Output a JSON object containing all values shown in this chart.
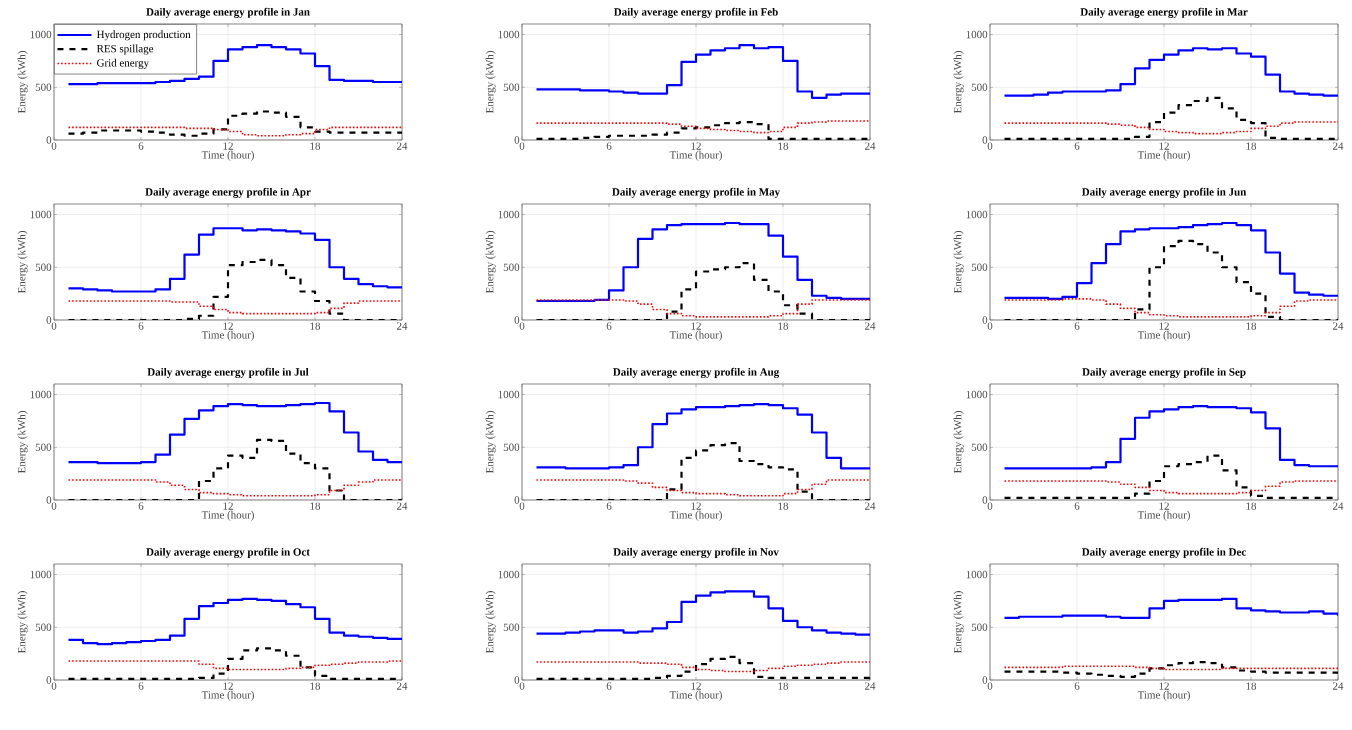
{
  "chart_data": [
    {
      "type": "step",
      "title": "Daily average energy profile in Jan",
      "xlabel": "Time (hour)",
      "ylabel": "Energy (kWh)",
      "x": [
        1,
        2,
        3,
        4,
        5,
        6,
        7,
        8,
        9,
        10,
        11,
        12,
        13,
        14,
        15,
        16,
        17,
        18,
        19,
        20,
        21,
        22,
        23,
        24
      ],
      "xlim": [
        0,
        24
      ],
      "ylim": [
        0,
        1100
      ],
      "xticks": [
        0,
        6,
        12,
        18,
        24
      ],
      "yticks": [
        0,
        500,
        1000
      ],
      "grid": true,
      "legend": "top left",
      "series": [
        {
          "name": "Hydrogen production",
          "color": "#0000ff",
          "line_style": "solid",
          "values": [
            530,
            530,
            540,
            540,
            540,
            540,
            550,
            560,
            580,
            600,
            750,
            860,
            880,
            900,
            880,
            860,
            820,
            700,
            570,
            560,
            560,
            550,
            550,
            550
          ]
        },
        {
          "name": "RES spillage",
          "color": "#000000",
          "line_style": "dashed",
          "values": [
            60,
            70,
            90,
            90,
            90,
            80,
            70,
            50,
            40,
            60,
            100,
            230,
            250,
            270,
            260,
            220,
            120,
            80,
            70,
            70,
            70,
            70,
            70,
            70
          ]
        },
        {
          "name": "Grid energy",
          "color": "#ff0000",
          "line_style": "dotted",
          "values": [
            120,
            120,
            120,
            120,
            120,
            120,
            120,
            120,
            110,
            110,
            100,
            80,
            50,
            40,
            40,
            50,
            60,
            100,
            120,
            120,
            120,
            120,
            120,
            120
          ]
        }
      ]
    },
    {
      "type": "step",
      "title": "Daily average energy profile in Feb",
      "xlabel": "Time (hour)",
      "ylabel": "Energy (kWh)",
      "x": [
        1,
        2,
        3,
        4,
        5,
        6,
        7,
        8,
        9,
        10,
        11,
        12,
        13,
        14,
        15,
        16,
        17,
        18,
        19,
        20,
        21,
        22,
        23,
        24
      ],
      "xlim": [
        0,
        24
      ],
      "ylim": [
        0,
        1100
      ],
      "xticks": [
        0,
        6,
        12,
        18,
        24
      ],
      "yticks": [
        0,
        500,
        1000
      ],
      "grid": true,
      "series": [
        {
          "color": "#0000ff",
          "line_style": "solid",
          "values": [
            480,
            480,
            480,
            470,
            470,
            460,
            450,
            440,
            440,
            520,
            740,
            810,
            850,
            870,
            900,
            870,
            880,
            750,
            460,
            400,
            430,
            440,
            440,
            440
          ]
        },
        {
          "color": "#000000",
          "line_style": "dashed",
          "values": [
            10,
            10,
            10,
            20,
            30,
            40,
            40,
            40,
            50,
            70,
            110,
            120,
            140,
            160,
            170,
            150,
            10,
            10,
            10,
            10,
            10,
            10,
            10,
            10
          ]
        },
        {
          "color": "#ff0000",
          "line_style": "dotted",
          "values": [
            160,
            160,
            160,
            160,
            160,
            160,
            160,
            160,
            160,
            150,
            130,
            110,
            100,
            90,
            80,
            70,
            80,
            120,
            160,
            170,
            180,
            180,
            180,
            180
          ]
        }
      ]
    },
    {
      "type": "step",
      "title": "Daily average energy profile in Mar",
      "xlabel": "Time (hour)",
      "ylabel": "Energy (kWh)",
      "x": [
        1,
        2,
        3,
        4,
        5,
        6,
        7,
        8,
        9,
        10,
        11,
        12,
        13,
        14,
        15,
        16,
        17,
        18,
        19,
        20,
        21,
        22,
        23,
        24
      ],
      "xlim": [
        0,
        24
      ],
      "ylim": [
        0,
        1100
      ],
      "xticks": [
        0,
        6,
        12,
        18,
        24
      ],
      "yticks": [
        0,
        500,
        1000
      ],
      "grid": true,
      "series": [
        {
          "color": "#0000ff",
          "line_style": "solid",
          "values": [
            420,
            420,
            430,
            450,
            460,
            460,
            460,
            470,
            530,
            680,
            760,
            810,
            850,
            870,
            860,
            870,
            820,
            790,
            620,
            460,
            440,
            430,
            420,
            410
          ]
        },
        {
          "color": "#000000",
          "line_style": "dashed",
          "values": [
            10,
            10,
            10,
            10,
            10,
            10,
            10,
            10,
            10,
            30,
            170,
            260,
            330,
            370,
            400,
            300,
            190,
            160,
            20,
            10,
            10,
            10,
            10,
            10
          ]
        },
        {
          "color": "#ff0000",
          "line_style": "dotted",
          "values": [
            160,
            160,
            160,
            160,
            160,
            160,
            160,
            150,
            140,
            120,
            100,
            80,
            70,
            60,
            60,
            70,
            80,
            110,
            130,
            160,
            170,
            170,
            170,
            170
          ]
        }
      ]
    },
    {
      "type": "step",
      "title": "Daily average energy profile in Apr",
      "xlabel": "Time (hour)",
      "ylabel": "Energy (kWh)",
      "x": [
        1,
        2,
        3,
        4,
        5,
        6,
        7,
        8,
        9,
        10,
        11,
        12,
        13,
        14,
        15,
        16,
        17,
        18,
        19,
        20,
        21,
        22,
        23,
        24
      ],
      "xlim": [
        0,
        24
      ],
      "ylim": [
        0,
        1100
      ],
      "xticks": [
        0,
        6,
        12,
        18,
        24
      ],
      "yticks": [
        0,
        500,
        1000
      ],
      "grid": true,
      "series": [
        {
          "color": "#0000ff",
          "line_style": "solid",
          "values": [
            300,
            290,
            280,
            270,
            270,
            270,
            290,
            390,
            620,
            810,
            870,
            870,
            850,
            860,
            850,
            840,
            820,
            760,
            500,
            390,
            340,
            320,
            310,
            300
          ]
        },
        {
          "color": "#000000",
          "line_style": "dashed",
          "values": [
            0,
            0,
            0,
            0,
            0,
            0,
            0,
            0,
            10,
            40,
            220,
            520,
            550,
            570,
            520,
            400,
            270,
            180,
            60,
            0,
            0,
            0,
            0,
            0
          ]
        },
        {
          "color": "#ff0000",
          "line_style": "dotted",
          "values": [
            180,
            180,
            180,
            180,
            180,
            180,
            180,
            170,
            170,
            130,
            100,
            70,
            60,
            60,
            60,
            60,
            60,
            70,
            110,
            160,
            180,
            180,
            180,
            180
          ]
        }
      ]
    },
    {
      "type": "step",
      "title": "Daily average energy profile in May",
      "xlabel": "Time (hour)",
      "ylabel": "Energy (kWh)",
      "x": [
        1,
        2,
        3,
        4,
        5,
        6,
        7,
        8,
        9,
        10,
        11,
        12,
        13,
        14,
        15,
        16,
        17,
        18,
        19,
        20,
        21,
        22,
        23,
        24
      ],
      "xlim": [
        0,
        24
      ],
      "ylim": [
        0,
        1100
      ],
      "xticks": [
        0,
        6,
        12,
        18,
        24
      ],
      "yticks": [
        0,
        500,
        1000
      ],
      "grid": true,
      "series": [
        {
          "color": "#0000ff",
          "line_style": "solid",
          "values": [
            180,
            180,
            180,
            180,
            190,
            280,
            500,
            770,
            860,
            900,
            910,
            910,
            910,
            920,
            910,
            910,
            800,
            600,
            380,
            230,
            210,
            200,
            200,
            200
          ]
        },
        {
          "color": "#000000",
          "line_style": "dashed",
          "values": [
            0,
            0,
            0,
            0,
            0,
            0,
            0,
            0,
            0,
            80,
            290,
            460,
            480,
            500,
            540,
            380,
            270,
            140,
            60,
            0,
            0,
            0,
            0,
            0
          ]
        },
        {
          "color": "#ff0000",
          "line_style": "dotted",
          "values": [
            190,
            190,
            190,
            190,
            190,
            190,
            180,
            150,
            100,
            60,
            40,
            30,
            30,
            30,
            30,
            30,
            40,
            60,
            150,
            190,
            190,
            190,
            190,
            190
          ]
        }
      ]
    },
    {
      "type": "step",
      "title": "Daily average energy profile in Jun",
      "xlabel": "Time (hour)",
      "ylabel": "Energy (kWh)",
      "x": [
        1,
        2,
        3,
        4,
        5,
        6,
        7,
        8,
        9,
        10,
        11,
        12,
        13,
        14,
        15,
        16,
        17,
        18,
        19,
        20,
        21,
        22,
        23,
        24
      ],
      "xlim": [
        0,
        24
      ],
      "ylim": [
        0,
        1100
      ],
      "xticks": [
        0,
        6,
        12,
        18,
        24
      ],
      "yticks": [
        0,
        500,
        1000
      ],
      "grid": true,
      "series": [
        {
          "color": "#0000ff",
          "line_style": "solid",
          "values": [
            210,
            210,
            210,
            200,
            220,
            350,
            540,
            720,
            840,
            860,
            870,
            870,
            880,
            900,
            910,
            920,
            900,
            850,
            640,
            440,
            260,
            240,
            230,
            220
          ]
        },
        {
          "color": "#000000",
          "line_style": "dashed",
          "values": [
            0,
            0,
            0,
            0,
            0,
            0,
            0,
            0,
            0,
            100,
            500,
            700,
            750,
            720,
            640,
            500,
            360,
            250,
            30,
            0,
            0,
            0,
            0,
            0
          ]
        },
        {
          "color": "#ff0000",
          "line_style": "dotted",
          "values": [
            190,
            190,
            190,
            190,
            200,
            200,
            190,
            150,
            110,
            70,
            50,
            40,
            30,
            30,
            30,
            30,
            30,
            40,
            70,
            130,
            180,
            190,
            190,
            190
          ]
        }
      ]
    },
    {
      "type": "step",
      "title": "Daily average energy profile in Jul",
      "xlabel": "Time (hour)",
      "ylabel": "Energy (kWh)",
      "x": [
        1,
        2,
        3,
        4,
        5,
        6,
        7,
        8,
        9,
        10,
        11,
        12,
        13,
        14,
        15,
        16,
        17,
        18,
        19,
        20,
        21,
        22,
        23,
        24
      ],
      "xlim": [
        0,
        24
      ],
      "ylim": [
        0,
        1100
      ],
      "xticks": [
        0,
        6,
        12,
        18,
        24
      ],
      "yticks": [
        0,
        500,
        1000
      ],
      "grid": true,
      "series": [
        {
          "color": "#0000ff",
          "line_style": "solid",
          "values": [
            360,
            360,
            350,
            350,
            350,
            360,
            430,
            620,
            770,
            850,
            890,
            910,
            900,
            890,
            890,
            900,
            910,
            920,
            840,
            640,
            460,
            380,
            360,
            360
          ]
        },
        {
          "color": "#000000",
          "line_style": "dashed",
          "values": [
            0,
            0,
            0,
            0,
            0,
            0,
            0,
            0,
            0,
            180,
            300,
            420,
            400,
            570,
            560,
            440,
            350,
            300,
            90,
            0,
            0,
            0,
            0,
            0
          ]
        },
        {
          "color": "#ff0000",
          "line_style": "dotted",
          "values": [
            190,
            190,
            190,
            190,
            190,
            190,
            170,
            140,
            100,
            70,
            60,
            50,
            40,
            40,
            40,
            40,
            40,
            50,
            90,
            140,
            170,
            190,
            190,
            190
          ]
        }
      ]
    },
    {
      "type": "step",
      "title": "Daily average energy profile in Aug",
      "xlabel": "Time (hour)",
      "ylabel": "Energy (kWh)",
      "x": [
        1,
        2,
        3,
        4,
        5,
        6,
        7,
        8,
        9,
        10,
        11,
        12,
        13,
        14,
        15,
        16,
        17,
        18,
        19,
        20,
        21,
        22,
        23,
        24
      ],
      "xlim": [
        0,
        24
      ],
      "ylim": [
        0,
        1100
      ],
      "xticks": [
        0,
        6,
        12,
        18,
        24
      ],
      "yticks": [
        0,
        500,
        1000
      ],
      "grid": true,
      "series": [
        {
          "color": "#0000ff",
          "line_style": "solid",
          "values": [
            310,
            310,
            300,
            300,
            300,
            310,
            330,
            500,
            720,
            820,
            860,
            880,
            880,
            890,
            900,
            910,
            900,
            870,
            810,
            640,
            400,
            300,
            300,
            300
          ]
        },
        {
          "color": "#000000",
          "line_style": "dashed",
          "values": [
            0,
            0,
            0,
            0,
            0,
            0,
            0,
            0,
            0,
            100,
            400,
            470,
            520,
            540,
            370,
            340,
            310,
            290,
            80,
            0,
            0,
            0,
            0,
            0
          ]
        },
        {
          "color": "#ff0000",
          "line_style": "dotted",
          "values": [
            190,
            190,
            190,
            190,
            190,
            190,
            180,
            160,
            120,
            90,
            70,
            60,
            60,
            50,
            40,
            40,
            40,
            60,
            100,
            150,
            190,
            190,
            190,
            190
          ]
        }
      ]
    },
    {
      "type": "step",
      "title": "Daily average energy profile in Sep",
      "xlabel": "Time (hour)",
      "ylabel": "Energy (kWh)",
      "x": [
        1,
        2,
        3,
        4,
        5,
        6,
        7,
        8,
        9,
        10,
        11,
        12,
        13,
        14,
        15,
        16,
        17,
        18,
        19,
        20,
        21,
        22,
        23,
        24
      ],
      "xlim": [
        0,
        24
      ],
      "ylim": [
        0,
        1100
      ],
      "xticks": [
        0,
        6,
        12,
        18,
        24
      ],
      "yticks": [
        0,
        500,
        1000
      ],
      "grid": true,
      "series": [
        {
          "color": "#0000ff",
          "line_style": "solid",
          "values": [
            300,
            300,
            300,
            300,
            300,
            300,
            310,
            360,
            580,
            780,
            840,
            860,
            880,
            890,
            880,
            880,
            870,
            830,
            680,
            380,
            330,
            320,
            320,
            320
          ]
        },
        {
          "color": "#000000",
          "line_style": "dashed",
          "values": [
            20,
            20,
            20,
            20,
            20,
            20,
            20,
            20,
            20,
            60,
            180,
            320,
            340,
            360,
            420,
            280,
            120,
            40,
            20,
            20,
            20,
            20,
            20,
            20
          ]
        },
        {
          "color": "#ff0000",
          "line_style": "dotted",
          "values": [
            180,
            180,
            180,
            180,
            180,
            180,
            180,
            170,
            150,
            120,
            90,
            70,
            60,
            60,
            60,
            60,
            70,
            90,
            130,
            170,
            180,
            180,
            180,
            180
          ]
        }
      ]
    },
    {
      "type": "step",
      "title": "Daily average energy profile in Oct",
      "xlabel": "Time (hour)",
      "ylabel": "Energy (kWh)",
      "x": [
        1,
        2,
        3,
        4,
        5,
        6,
        7,
        8,
        9,
        10,
        11,
        12,
        13,
        14,
        15,
        16,
        17,
        18,
        19,
        20,
        21,
        22,
        23,
        24
      ],
      "xlim": [
        0,
        24
      ],
      "ylim": [
        0,
        1100
      ],
      "xticks": [
        0,
        6,
        12,
        18,
        24
      ],
      "yticks": [
        0,
        500,
        1000
      ],
      "grid": true,
      "series": [
        {
          "color": "#0000ff",
          "line_style": "solid",
          "values": [
            380,
            350,
            340,
            350,
            360,
            370,
            380,
            420,
            580,
            700,
            730,
            760,
            770,
            760,
            750,
            720,
            690,
            580,
            450,
            420,
            410,
            400,
            390,
            380
          ]
        },
        {
          "color": "#000000",
          "line_style": "dashed",
          "values": [
            10,
            10,
            10,
            10,
            10,
            10,
            10,
            10,
            10,
            20,
            60,
            200,
            280,
            300,
            280,
            230,
            120,
            40,
            10,
            10,
            10,
            10,
            10,
            10
          ]
        },
        {
          "color": "#ff0000",
          "line_style": "dotted",
          "values": [
            180,
            180,
            180,
            180,
            180,
            180,
            180,
            180,
            180,
            150,
            110,
            100,
            100,
            100,
            100,
            110,
            120,
            140,
            150,
            160,
            170,
            170,
            180,
            180
          ]
        }
      ]
    },
    {
      "type": "step",
      "title": "Daily average energy profile in Nov",
      "xlabel": "Time (hour)",
      "ylabel": "Energy (kWh)",
      "x": [
        1,
        2,
        3,
        4,
        5,
        6,
        7,
        8,
        9,
        10,
        11,
        12,
        13,
        14,
        15,
        16,
        17,
        18,
        19,
        20,
        21,
        22,
        23,
        24
      ],
      "xlim": [
        0,
        24
      ],
      "ylim": [
        0,
        1100
      ],
      "xticks": [
        0,
        6,
        12,
        18,
        24
      ],
      "yticks": [
        0,
        500,
        1000
      ],
      "grid": true,
      "series": [
        {
          "color": "#0000ff",
          "line_style": "solid",
          "values": [
            440,
            440,
            450,
            460,
            470,
            470,
            450,
            460,
            490,
            550,
            740,
            800,
            830,
            840,
            840,
            790,
            680,
            560,
            500,
            470,
            450,
            440,
            430,
            430
          ]
        },
        {
          "color": "#000000",
          "line_style": "dashed",
          "values": [
            10,
            10,
            10,
            10,
            10,
            10,
            10,
            10,
            20,
            40,
            80,
            150,
            200,
            220,
            160,
            30,
            20,
            20,
            20,
            20,
            20,
            20,
            20,
            20
          ]
        },
        {
          "color": "#ff0000",
          "line_style": "dotted",
          "values": [
            170,
            170,
            170,
            170,
            170,
            170,
            170,
            160,
            160,
            150,
            120,
            100,
            90,
            80,
            80,
            90,
            110,
            130,
            140,
            150,
            160,
            170,
            170,
            170
          ]
        }
      ]
    },
    {
      "type": "step",
      "title": "Daily average energy profile in Dec",
      "xlabel": "Time (hour)",
      "ylabel": "Energy (kWh)",
      "x": [
        1,
        2,
        3,
        4,
        5,
        6,
        7,
        8,
        9,
        10,
        11,
        12,
        13,
        14,
        15,
        16,
        17,
        18,
        19,
        20,
        21,
        22,
        23,
        24
      ],
      "xlim": [
        0,
        24
      ],
      "ylim": [
        0,
        1100
      ],
      "xticks": [
        0,
        6,
        12,
        18,
        24
      ],
      "yticks": [
        0,
        500,
        1000
      ],
      "grid": true,
      "series": [
        {
          "color": "#0000ff",
          "line_style": "solid",
          "values": [
            590,
            600,
            600,
            600,
            610,
            610,
            610,
            600,
            590,
            590,
            680,
            750,
            760,
            760,
            760,
            770,
            680,
            660,
            650,
            640,
            640,
            650,
            630,
            610
          ]
        },
        {
          "color": "#000000",
          "line_style": "dashed",
          "values": [
            80,
            80,
            80,
            80,
            70,
            60,
            50,
            40,
            30,
            60,
            110,
            140,
            160,
            170,
            160,
            120,
            90,
            80,
            70,
            70,
            70,
            70,
            70,
            70
          ]
        },
        {
          "color": "#ff0000",
          "line_style": "dotted",
          "values": [
            120,
            120,
            120,
            120,
            130,
            130,
            130,
            130,
            130,
            120,
            110,
            100,
            100,
            100,
            100,
            110,
            110,
            110,
            110,
            110,
            110,
            110,
            110,
            110
          ]
        }
      ]
    }
  ]
}
